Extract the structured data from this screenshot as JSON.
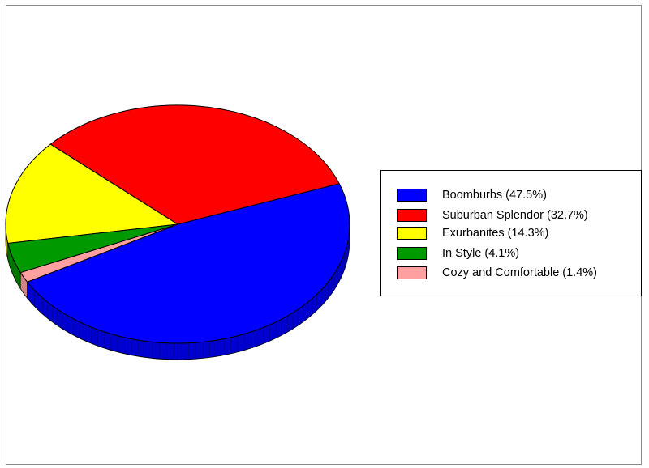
{
  "chart_data": {
    "type": "pie",
    "title": "",
    "style": "3d",
    "legend_position": "right",
    "slices": [
      {
        "label": "Boomburbs (47.5%)",
        "value": 47.5,
        "color": "#0000ff"
      },
      {
        "label": "Suburban Splendor (32.7%)",
        "value": 32.7,
        "color": "#ff0000"
      },
      {
        "label": "Exurbanites (14.3%)",
        "value": 14.3,
        "color": "#ffff00"
      },
      {
        "label": "In Style (4.1%)",
        "value": 4.1,
        "color": "#009900"
      },
      {
        "label": "Cozy and Comfortable (1.4%)",
        "value": 1.4,
        "color": "#ffa0a0"
      }
    ]
  }
}
